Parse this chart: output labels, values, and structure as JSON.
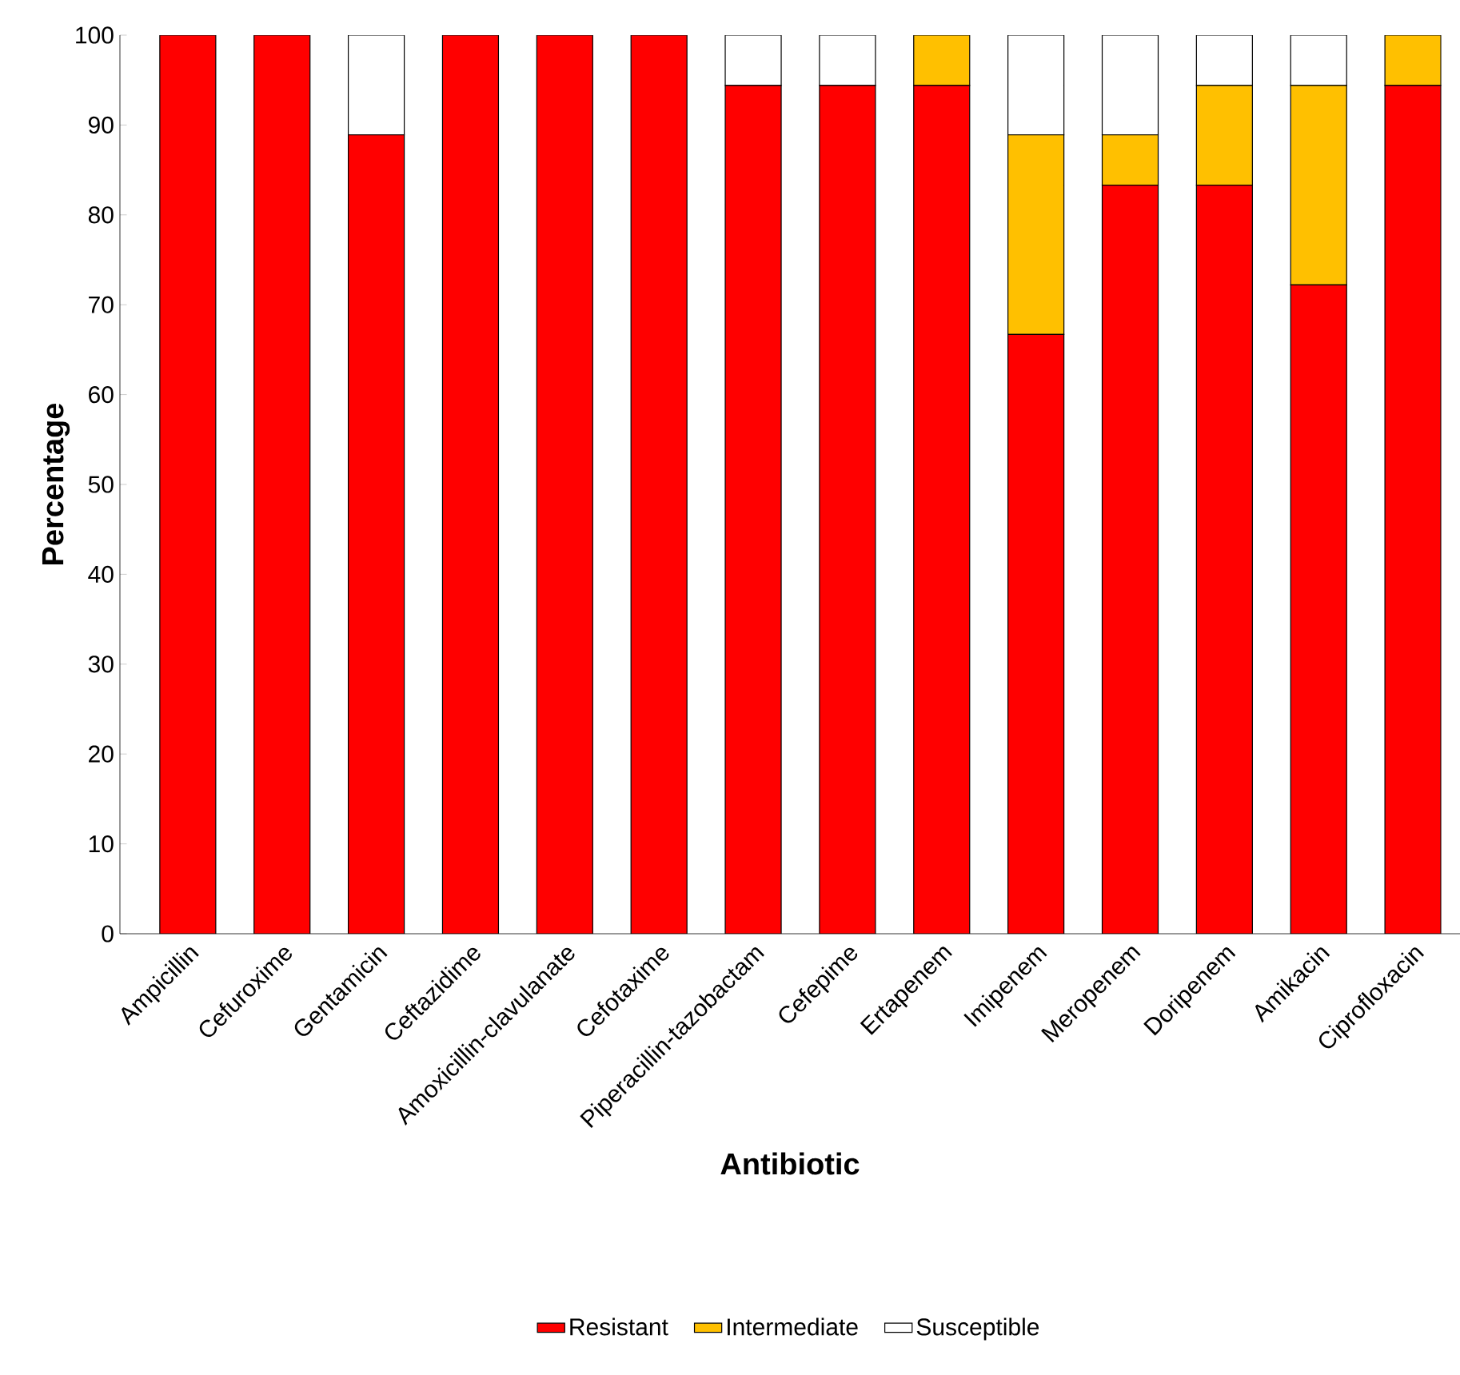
{
  "chart_data": {
    "type": "bar",
    "stacked": true,
    "xlabel": "Antibiotic",
    "ylabel": "Percentage",
    "categories": [
      "Ampicillin",
      "Cefuroxime",
      "Gentamicin",
      "Ceftazidime",
      "Amoxicillin-clavulanate",
      "Cefotaxime",
      "Piperacillin-tazobactam",
      "Cefepime",
      "Ertapenem",
      "Imipenem",
      "Meropenem",
      "Doripenem",
      "Amikacin",
      "Ciprofloxacin"
    ],
    "series": [
      {
        "name": "Resistant",
        "color": "#ff0000",
        "values": [
          100,
          100,
          88.9,
          100,
          100,
          100,
          94.4,
          94.4,
          94.4,
          66.7,
          83.3,
          83.3,
          72.2,
          94.4
        ]
      },
      {
        "name": "Intermediate",
        "color": "#ffc000",
        "values": [
          0,
          0,
          0,
          0,
          0,
          0,
          0,
          0,
          5.6,
          22.2,
          5.6,
          11.1,
          22.2,
          5.6
        ]
      },
      {
        "name": "Susceptible",
        "color": "#ffffff",
        "values": [
          0,
          0,
          11.1,
          0,
          0,
          0,
          5.6,
          5.6,
          0,
          11.1,
          11.1,
          5.6,
          5.6,
          0
        ]
      }
    ],
    "ylim": [
      0,
      100
    ],
    "yticks": [
      0,
      10,
      20,
      30,
      40,
      50,
      60,
      70,
      80,
      90,
      100
    ],
    "grid": false,
    "legend": "bottom"
  }
}
